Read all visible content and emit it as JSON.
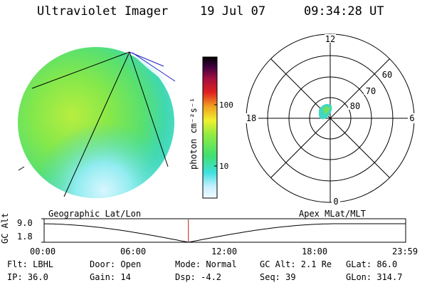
{
  "header": {
    "title": "Ultraviolet Imager",
    "date": "19 Jul 07",
    "time": "09:34:28 UT"
  },
  "colorbar": {
    "label": "photon cm⁻²s⁻¹",
    "ticks": [
      "100",
      "10"
    ],
    "colors": [
      "#e8f8ff",
      "#c8f0ff",
      "#40e0e0",
      "#60e860",
      "#a8f040",
      "#f0f040",
      "#f0a020",
      "#e02020",
      "#a01040",
      "#400040",
      "#000000"
    ]
  },
  "polar_plot": {
    "mlt_labels": {
      "top": "12",
      "left": "18",
      "right": "6",
      "bottom": "0"
    },
    "lat_labels": [
      "60",
      "70",
      "80"
    ]
  },
  "timeline": {
    "left_title": "Geographic Lat/Lon",
    "right_title": "Apex MLat/MLT",
    "ylabel": "GC Alt",
    "ymax": "9.0",
    "ymin": "1.8",
    "x_ticks": [
      "00:00",
      "06:00",
      "12:00",
      "18:00",
      "23:59"
    ],
    "current_time_hours": 9.575
  },
  "info": {
    "flt": "Flt: LBHL",
    "ip": "IP: 36.0",
    "door": "Door: Open",
    "gain": "Gain: 14",
    "mode": "Mode: Normal",
    "dsp": "Dsp:   -4.2",
    "gcalt": "GC Alt: 2.1 Re",
    "seq": "Seq: 39",
    "glat": "GLat:  86.0",
    "glon": "GLon: 314.7"
  }
}
